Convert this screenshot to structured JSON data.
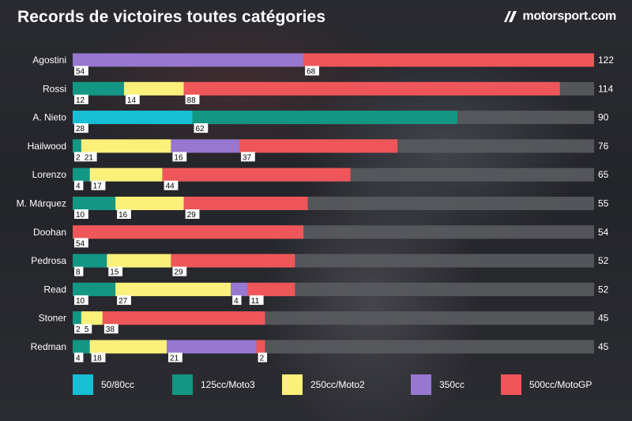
{
  "header": {
    "title": "Records de victoires toutes catégories",
    "brand": "motorsport.com"
  },
  "colors": {
    "50/80cc": "#16bfd6",
    "125cc/Moto3": "#139683",
    "250cc/Moto2": "#fbf07a",
    "350cc": "#9777cf",
    "500cc/MotoGP": "#ef5659",
    "track": "#5a5b5f"
  },
  "chart_data": {
    "type": "bar",
    "orientation": "horizontal",
    "stacked": true,
    "title": "Records de victoires toutes catégories",
    "xlim": [
      0,
      122
    ],
    "categories": [
      "Agostini",
      "Rossi",
      "A. Nieto",
      "Hailwood",
      "Lorenzo",
      "M. Márquez",
      "Doohan",
      "Pedrosa",
      "Read",
      "Stoner",
      "Redman"
    ],
    "totals": [
      122,
      114,
      90,
      76,
      65,
      55,
      54,
      52,
      52,
      45,
      45
    ],
    "series": [
      {
        "name": "50/80cc",
        "values": [
          0,
          0,
          28,
          0,
          0,
          0,
          0,
          0,
          0,
          0,
          0
        ]
      },
      {
        "name": "125cc/Moto3",
        "values": [
          0,
          12,
          62,
          2,
          4,
          10,
          0,
          8,
          10,
          2,
          4
        ]
      },
      {
        "name": "250cc/Moto2",
        "values": [
          0,
          14,
          0,
          21,
          17,
          16,
          0,
          15,
          27,
          5,
          18
        ]
      },
      {
        "name": "350cc",
        "values": [
          54,
          0,
          0,
          16,
          0,
          0,
          0,
          0,
          4,
          0,
          21
        ]
      },
      {
        "name": "500cc/MotoGP",
        "values": [
          68,
          88,
          0,
          37,
          44,
          29,
          54,
          29,
          11,
          38,
          2
        ]
      }
    ],
    "legend": [
      "50/80cc",
      "125cc/Moto3",
      "250cc/Moto2",
      "350cc",
      "500cc/MotoGP"
    ],
    "legend_position": "bottom"
  }
}
